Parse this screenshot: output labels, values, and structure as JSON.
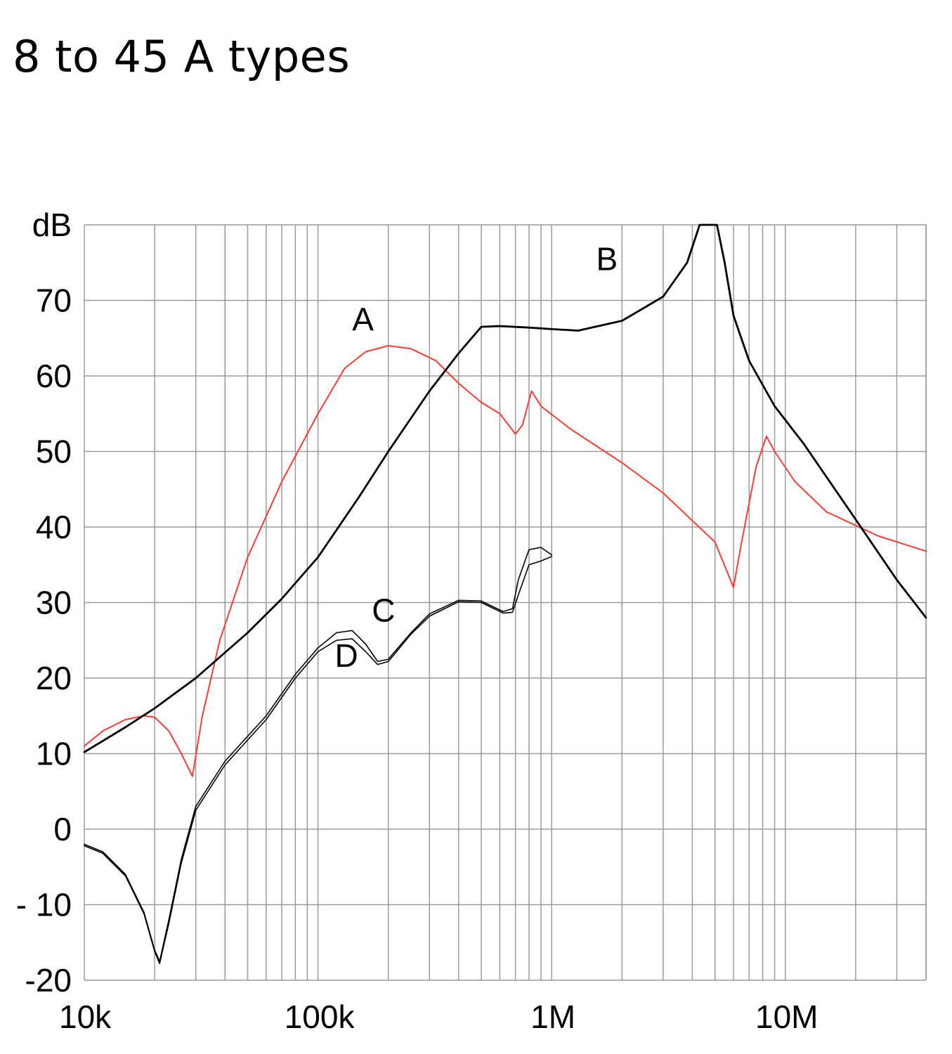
{
  "title": "8 to 45 A types",
  "chart_data": {
    "type": "line",
    "title": "8 to 45 A types",
    "ylabel": "dB",
    "xlabel": "",
    "x_scale": "log",
    "xlim": [
      10000,
      40000000
    ],
    "ylim": [
      -20,
      80
    ],
    "x_ticks": [
      {
        "value": 10000,
        "label": "10k"
      },
      {
        "value": 100000,
        "label": "100k"
      },
      {
        "value": 1000000,
        "label": "1M"
      },
      {
        "value": 10000000,
        "label": "10M"
      }
    ],
    "y_ticks": [
      {
        "value": 80,
        "label": "dB"
      },
      {
        "value": 70,
        "label": "70"
      },
      {
        "value": 60,
        "label": "60"
      },
      {
        "value": 50,
        "label": "50"
      },
      {
        "value": 40,
        "label": "40"
      },
      {
        "value": 30,
        "label": "30"
      },
      {
        "value": 20,
        "label": "20"
      },
      {
        "value": 10,
        "label": "10"
      },
      {
        "value": 0,
        "label": "0"
      },
      {
        "value": -10,
        "label": "- 10"
      },
      {
        "value": -20,
        "label": "-20"
      }
    ],
    "grid": true,
    "series": [
      {
        "name": "A",
        "color": "#ff3b30",
        "label_at": [
          140000,
          66
        ],
        "points": [
          [
            10000,
            11
          ],
          [
            12000,
            13
          ],
          [
            15000,
            14.5
          ],
          [
            18000,
            15
          ],
          [
            20000,
            14.8
          ],
          [
            23000,
            13
          ],
          [
            26000,
            10
          ],
          [
            29000,
            7
          ],
          [
            32000,
            15
          ],
          [
            38000,
            25
          ],
          [
            50000,
            36
          ],
          [
            70000,
            46
          ],
          [
            100000,
            55
          ],
          [
            130000,
            61
          ],
          [
            160000,
            63.2
          ],
          [
            200000,
            64
          ],
          [
            250000,
            63.6
          ],
          [
            320000,
            62
          ],
          [
            400000,
            59
          ],
          [
            500000,
            56.5
          ],
          [
            600000,
            55
          ],
          [
            700000,
            52.3
          ],
          [
            750000,
            53.5
          ],
          [
            820000,
            58
          ],
          [
            900000,
            56
          ],
          [
            1200000,
            53
          ],
          [
            2000000,
            48.5
          ],
          [
            3000000,
            44.5
          ],
          [
            5000000,
            38
          ],
          [
            6000000,
            32
          ],
          [
            6500000,
            38
          ],
          [
            7500000,
            48
          ],
          [
            8300000,
            52
          ],
          [
            9000000,
            50
          ],
          [
            11000000,
            46
          ],
          [
            15000000,
            42
          ],
          [
            25000000,
            38.8
          ],
          [
            40000000,
            36.8
          ]
        ]
      },
      {
        "name": "B",
        "color": "#000000",
        "label_at": [
          1550000,
          74
        ],
        "points": [
          [
            10000,
            10.2
          ],
          [
            15000,
            13.5
          ],
          [
            20000,
            16
          ],
          [
            30000,
            20
          ],
          [
            50000,
            26
          ],
          [
            70000,
            30.5
          ],
          [
            100000,
            36
          ],
          [
            150000,
            44
          ],
          [
            200000,
            50
          ],
          [
            300000,
            58
          ],
          [
            400000,
            63
          ],
          [
            500000,
            66.5
          ],
          [
            600000,
            66.6
          ],
          [
            800000,
            66.4
          ],
          [
            1000000,
            66.2
          ],
          [
            1300000,
            66
          ],
          [
            2000000,
            67.3
          ],
          [
            3000000,
            70.5
          ],
          [
            3800000,
            75
          ],
          [
            4300000,
            80
          ],
          [
            5100000,
            80
          ],
          [
            5500000,
            75
          ],
          [
            6000000,
            68
          ],
          [
            7000000,
            62
          ],
          [
            9000000,
            56
          ],
          [
            12000000,
            51
          ],
          [
            20000000,
            41
          ],
          [
            30000000,
            33
          ],
          [
            40000000,
            28
          ]
        ]
      },
      {
        "name": "C",
        "color": "#000000",
        "label_at": [
          170000,
          27.5
        ],
        "points": [
          [
            10000,
            -2
          ],
          [
            12000,
            -3
          ],
          [
            15000,
            -6
          ],
          [
            18000,
            -11
          ],
          [
            20000,
            -16
          ],
          [
            21000,
            -17.5
          ],
          [
            23000,
            -12
          ],
          [
            26000,
            -4
          ],
          [
            30000,
            3
          ],
          [
            40000,
            9
          ],
          [
            60000,
            15
          ],
          [
            80000,
            20.5
          ],
          [
            100000,
            24
          ],
          [
            120000,
            26
          ],
          [
            140000,
            26.3
          ],
          [
            160000,
            24.5
          ],
          [
            180000,
            22.2
          ],
          [
            200000,
            22.5
          ],
          [
            250000,
            26
          ],
          [
            300000,
            28.5
          ],
          [
            400000,
            30.3
          ],
          [
            500000,
            30.2
          ],
          [
            620000,
            28.8
          ],
          [
            680000,
            29.2
          ],
          [
            720000,
            33
          ],
          [
            800000,
            37
          ],
          [
            900000,
            37.3
          ],
          [
            1000000,
            36.3
          ]
        ]
      },
      {
        "name": "D",
        "color": "#000000",
        "label_at": [
          118000,
          21.5
        ],
        "points": [
          [
            10000,
            -2.2
          ],
          [
            12000,
            -3.2
          ],
          [
            15000,
            -6.2
          ],
          [
            18000,
            -11.2
          ],
          [
            20000,
            -16.2
          ],
          [
            21000,
            -17.8
          ],
          [
            23000,
            -12.5
          ],
          [
            26000,
            -4.5
          ],
          [
            30000,
            2.5
          ],
          [
            40000,
            8.5
          ],
          [
            60000,
            14.5
          ],
          [
            80000,
            20
          ],
          [
            100000,
            23.5
          ],
          [
            120000,
            25
          ],
          [
            140000,
            25.2
          ],
          [
            160000,
            23.5
          ],
          [
            180000,
            21.8
          ],
          [
            200000,
            22.2
          ],
          [
            250000,
            25.8
          ],
          [
            300000,
            28.2
          ],
          [
            400000,
            30.1
          ],
          [
            500000,
            30
          ],
          [
            620000,
            28.6
          ],
          [
            680000,
            28.7
          ],
          [
            720000,
            31
          ],
          [
            800000,
            35
          ],
          [
            900000,
            35.5
          ],
          [
            1000000,
            36.1
          ]
        ]
      }
    ]
  }
}
